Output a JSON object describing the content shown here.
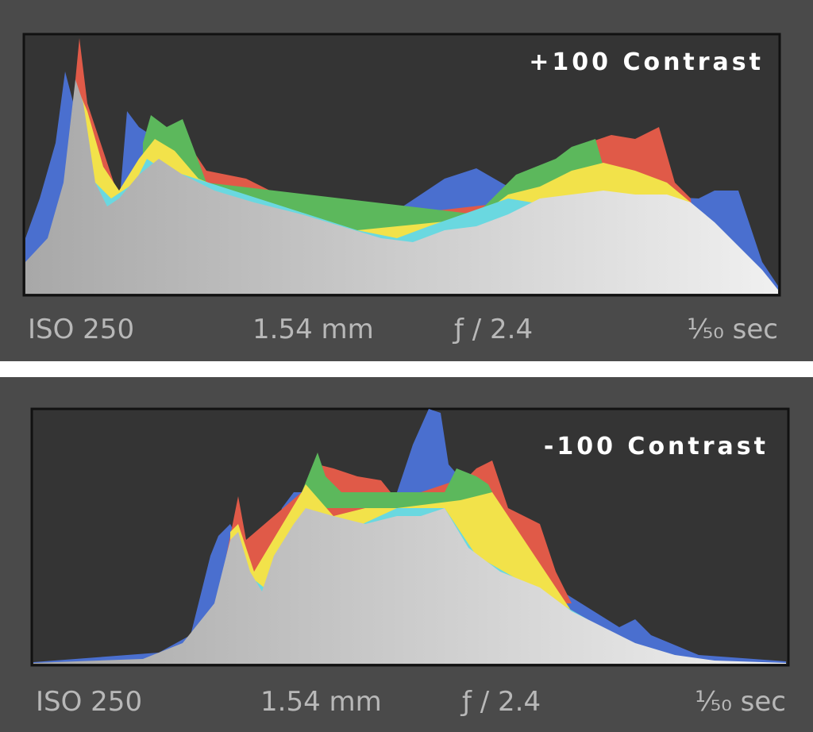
{
  "panels": [
    {
      "label": "+100 Contrast",
      "iso": "ISO 250",
      "focal": "1.54 mm",
      "aperture": "ƒ / 2.4",
      "shutter": "¹⁄₅₀ sec"
    },
    {
      "label": "-100 Contrast",
      "iso": "ISO 250",
      "focal": "1.54 mm",
      "aperture": "ƒ / 2.4",
      "shutter": "¹⁄₅₀ sec"
    }
  ]
}
